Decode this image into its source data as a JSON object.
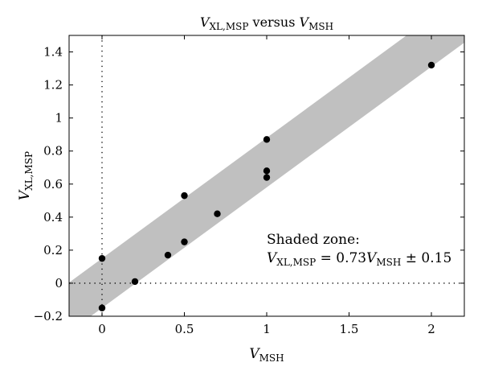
{
  "chart_data": {
    "type": "scatter",
    "title": {
      "prefix_var": "V",
      "prefix_sub": "XL,MSP",
      "middle": " versus ",
      "suffix_var": "V",
      "suffix_sub": "MSH"
    },
    "xlabel": {
      "var": "V",
      "sub": "MSH"
    },
    "ylabel": {
      "var": "V",
      "sub": "XL,MSP"
    },
    "xlim": [
      -0.2,
      2.2
    ],
    "ylim": [
      -0.2,
      1.5
    ],
    "xticks": [
      0,
      0.5,
      1,
      1.5,
      2
    ],
    "xtick_labels": [
      "0",
      "0.5",
      "1",
      "1.5",
      "2"
    ],
    "yticks": [
      -0.2,
      0,
      0.2,
      0.4,
      0.6,
      0.8,
      1,
      1.2,
      1.4
    ],
    "ytick_labels": [
      "−0.2",
      "0",
      "0.2",
      "0.4",
      "0.6",
      "0.8",
      "1",
      "1.2",
      "1.4"
    ],
    "points": [
      {
        "x": 0,
        "y": 0.15
      },
      {
        "x": 0,
        "y": -0.15
      },
      {
        "x": 0.2,
        "y": 0.01
      },
      {
        "x": 0.4,
        "y": 0.17
      },
      {
        "x": 0.5,
        "y": 0.53
      },
      {
        "x": 0.5,
        "y": 0.25
      },
      {
        "x": 0.7,
        "y": 0.42
      },
      {
        "x": 1,
        "y": 0.87
      },
      {
        "x": 1,
        "y": 0.68
      },
      {
        "x": 1,
        "y": 0.64
      },
      {
        "x": 2,
        "y": 1.32
      }
    ],
    "shaded_band": {
      "slope": 0.73,
      "half_width": 0.15
    },
    "annotation": {
      "line1": "Shaded zone:",
      "lhs_var": "V",
      "lhs_sub": "XL,MSP",
      "mid": " = 0.73",
      "rhs_var": "V",
      "rhs_sub": "MSH",
      "tail": " ± 0.15"
    },
    "band_color": "#c0c0c0",
    "point_color": "#000000",
    "reference_lines": [
      "x=0 dotted",
      "y=0 dotted"
    ]
  }
}
